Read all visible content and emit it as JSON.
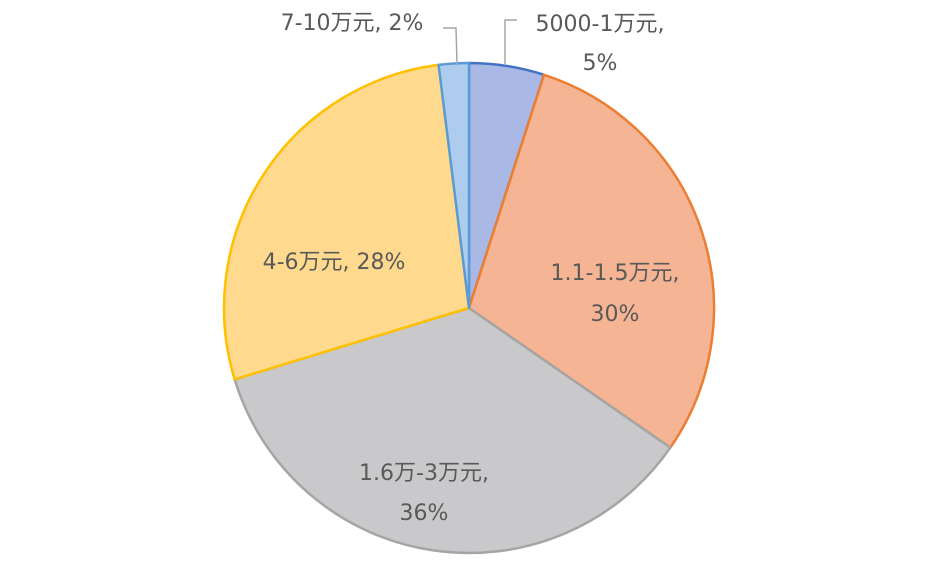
{
  "chart_data": {
    "type": "pie",
    "title": "",
    "start_angle_deg": 0,
    "direction": "clockwise",
    "slices": [
      {
        "label": "5000-1万元",
        "value": 5,
        "value_label": "5%",
        "fill": "#a9b8e4",
        "stroke": "#4472c4"
      },
      {
        "label": "1.1-1.5万元",
        "value": 30,
        "value_label": "30%",
        "fill": "#f5b493",
        "stroke": "#ed7d31"
      },
      {
        "label": "1.6万-3万元",
        "value": 36,
        "value_label": "36%",
        "fill": "#c9c9cb",
        "stroke": "#a5a5a5"
      },
      {
        "label": "4-6万元",
        "value": 28,
        "value_label": "28%",
        "fill": "#fed98e",
        "stroke": "#ffc000"
      },
      {
        "label": "7-10万元",
        "value": 2,
        "value_label": "2%",
        "fill": "#aecdee",
        "stroke": "#5b9bd5"
      }
    ],
    "data_labels": [
      {
        "lines": [
          "5000-1万元,",
          "5%"
        ]
      },
      {
        "lines": [
          "1.1-1.5万元,",
          "30%"
        ]
      },
      {
        "lines": [
          "1.6万-3万元,",
          "36%"
        ]
      },
      {
        "lines": [
          "4-6万元, 28%"
        ]
      },
      {
        "lines": [
          "7-10万元, 2%"
        ]
      }
    ],
    "legend": "none"
  }
}
